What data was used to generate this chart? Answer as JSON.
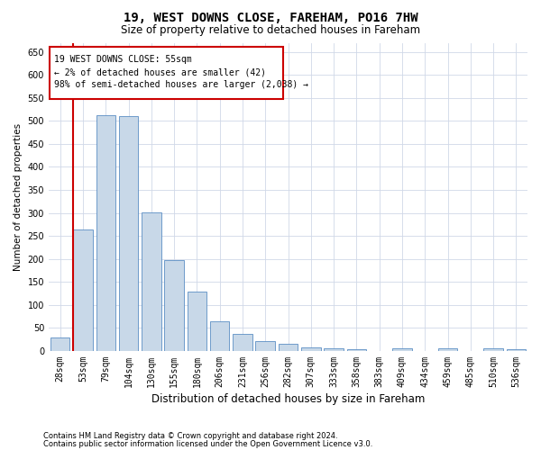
{
  "title1": "19, WEST DOWNS CLOSE, FAREHAM, PO16 7HW",
  "title2": "Size of property relative to detached houses in Fareham",
  "xlabel": "Distribution of detached houses by size in Fareham",
  "ylabel": "Number of detached properties",
  "categories": [
    "28sqm",
    "53sqm",
    "79sqm",
    "104sqm",
    "130sqm",
    "155sqm",
    "180sqm",
    "206sqm",
    "231sqm",
    "256sqm",
    "282sqm",
    "307sqm",
    "333sqm",
    "358sqm",
    "383sqm",
    "409sqm",
    "434sqm",
    "459sqm",
    "485sqm",
    "510sqm",
    "536sqm"
  ],
  "values": [
    30,
    265,
    512,
    510,
    302,
    197,
    130,
    65,
    38,
    22,
    15,
    8,
    5,
    3,
    0,
    5,
    0,
    5,
    0,
    5,
    3
  ],
  "bar_color": "#c8d8e8",
  "bar_edge_color": "#5b8ec4",
  "highlight_color": "#cc0000",
  "ylim": [
    0,
    670
  ],
  "yticks": [
    0,
    50,
    100,
    150,
    200,
    250,
    300,
    350,
    400,
    450,
    500,
    550,
    600,
    650
  ],
  "annotation_lines": [
    "19 WEST DOWNS CLOSE: 55sqm",
    "← 2% of detached houses are smaller (42)",
    "98% of semi-detached houses are larger (2,038) →"
  ],
  "footer1": "Contains HM Land Registry data © Crown copyright and database right 2024.",
  "footer2": "Contains public sector information licensed under the Open Government Licence v3.0.",
  "background_color": "#ffffff",
  "grid_color": "#d0d8e8",
  "title1_fontsize": 10,
  "title2_fontsize": 8.5,
  "xlabel_fontsize": 8.5,
  "ylabel_fontsize": 7.5,
  "tick_fontsize": 7,
  "ann_fontsize": 7,
  "footer_fontsize": 6
}
